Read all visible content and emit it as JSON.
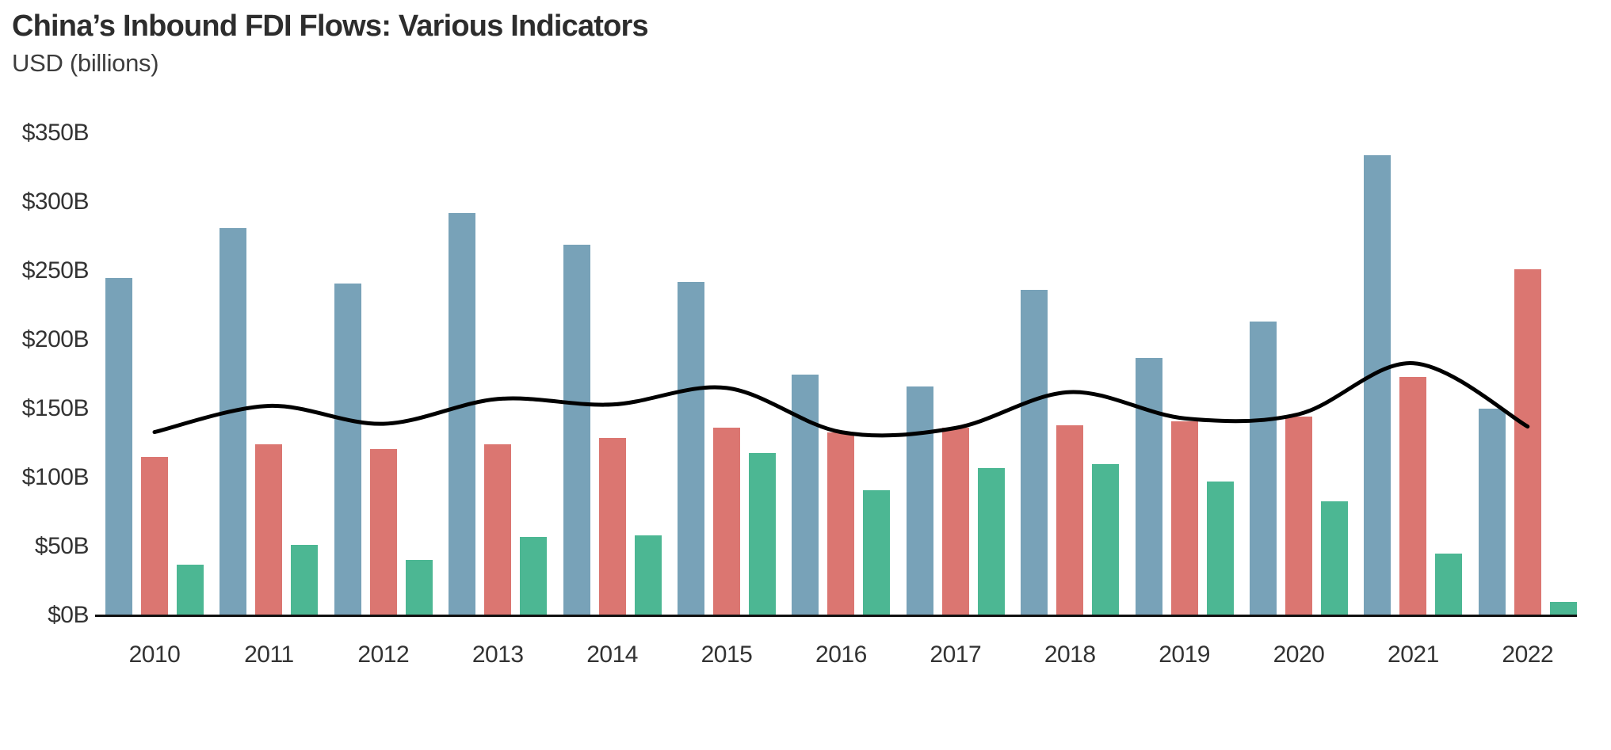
{
  "page": {
    "background": "#ffffff"
  },
  "header": {
    "title": "China’s Inbound FDI Flows: Various Indicators",
    "subtitle": "USD (billions)"
  },
  "chart_data": {
    "type": "bar",
    "title": "China’s Inbound FDI Flows: Various Indicators",
    "subtitle": "USD (billions)",
    "xlabel": "",
    "ylabel": "USD (billions)",
    "categories": [
      "2010",
      "2011",
      "2012",
      "2013",
      "2014",
      "2015",
      "2016",
      "2017",
      "2018",
      "2019",
      "2020",
      "2021",
      "2022"
    ],
    "series": [
      {
        "name": "blue-bars",
        "type": "bar",
        "color": "#78a2b8",
        "values": [
          245,
          281,
          241,
          292,
          269,
          242,
          175,
          166,
          236,
          187,
          213,
          334,
          150
        ]
      },
      {
        "name": "red-bars",
        "type": "bar",
        "color": "#db7671",
        "values": [
          115,
          124,
          121,
          124,
          129,
          136,
          133,
          136,
          138,
          141,
          144,
          173,
          251
        ]
      },
      {
        "name": "green-bars",
        "type": "bar",
        "color": "#4cb793",
        "values": [
          37,
          51,
          40,
          57,
          58,
          118,
          91,
          107,
          110,
          97,
          83,
          45,
          10
        ]
      },
      {
        "name": "black-trend-line",
        "type": "line",
        "color": "#000000",
        "values": [
          133,
          152,
          139,
          157,
          153,
          165,
          133,
          136,
          162,
          143,
          146,
          183,
          137
        ]
      }
    ],
    "y_ticks": [
      {
        "value": 0,
        "label": "$0B"
      },
      {
        "value": 50,
        "label": "$50B"
      },
      {
        "value": 100,
        "label": "$100B"
      },
      {
        "value": 150,
        "label": "$150B"
      },
      {
        "value": 200,
        "label": "$200B"
      },
      {
        "value": 250,
        "label": "$250B"
      },
      {
        "value": 300,
        "label": "$300B"
      },
      {
        "value": 350,
        "label": "$350B"
      }
    ],
    "ylim": [
      0,
      350
    ],
    "grid": false,
    "legend": "none"
  }
}
